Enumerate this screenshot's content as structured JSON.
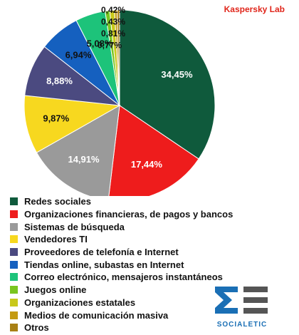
{
  "brand": "Kaspersky Lab",
  "logo_text": "SOCIALETIC",
  "chart_data": {
    "type": "pie",
    "title": "",
    "slices": [
      {
        "label": "Redes sociales",
        "value": 34.45,
        "display": "34,45%",
        "color": "#0f5a3c",
        "text_color": "#ffffff"
      },
      {
        "label": "Organizaciones financieras, de pagos y bancos",
        "value": 17.44,
        "display": "17,44%",
        "color": "#ee1c1c",
        "text_color": "#ffffff"
      },
      {
        "label": "Sistemas de búsqueda",
        "value": 14.91,
        "display": "14,91%",
        "color": "#9a9a9a",
        "text_color": "#ffffff"
      },
      {
        "label": "Vendedores TI",
        "value": 9.87,
        "display": "9,87%",
        "color": "#f7d81f",
        "text_color": "#111111"
      },
      {
        "label": "Proveedores de telefonía e Internet",
        "value": 8.88,
        "display": "8,88%",
        "color": "#4b4a80",
        "text_color": "#ffffff"
      },
      {
        "label": "Tiendas online, subastas en Internet",
        "value": 6.94,
        "display": "6,94%",
        "color": "#1560bf",
        "text_color": "#111111"
      },
      {
        "label": "Correo electrónico, mensajeros instantáneos",
        "value": 5.08,
        "display": "5,08%",
        "color": "#1dc37a",
        "text_color": "#111111"
      },
      {
        "label": "Juegos online",
        "value": 0.77,
        "display": "0,77%",
        "color": "#7ac51f",
        "text_color": "#111111"
      },
      {
        "label": "Organizaciones estatales",
        "value": 0.81,
        "display": "0,81%",
        "color": "#c8c81a",
        "text_color": "#111111"
      },
      {
        "label": "Medios de comunicación masiva",
        "value": 0.43,
        "display": "0,43%",
        "color": "#c49a12",
        "text_color": "#111111"
      },
      {
        "label": "Otros",
        "value": 0.42,
        "display": "0,42%",
        "color": "#a88014",
        "text_color": "#111111"
      }
    ]
  }
}
